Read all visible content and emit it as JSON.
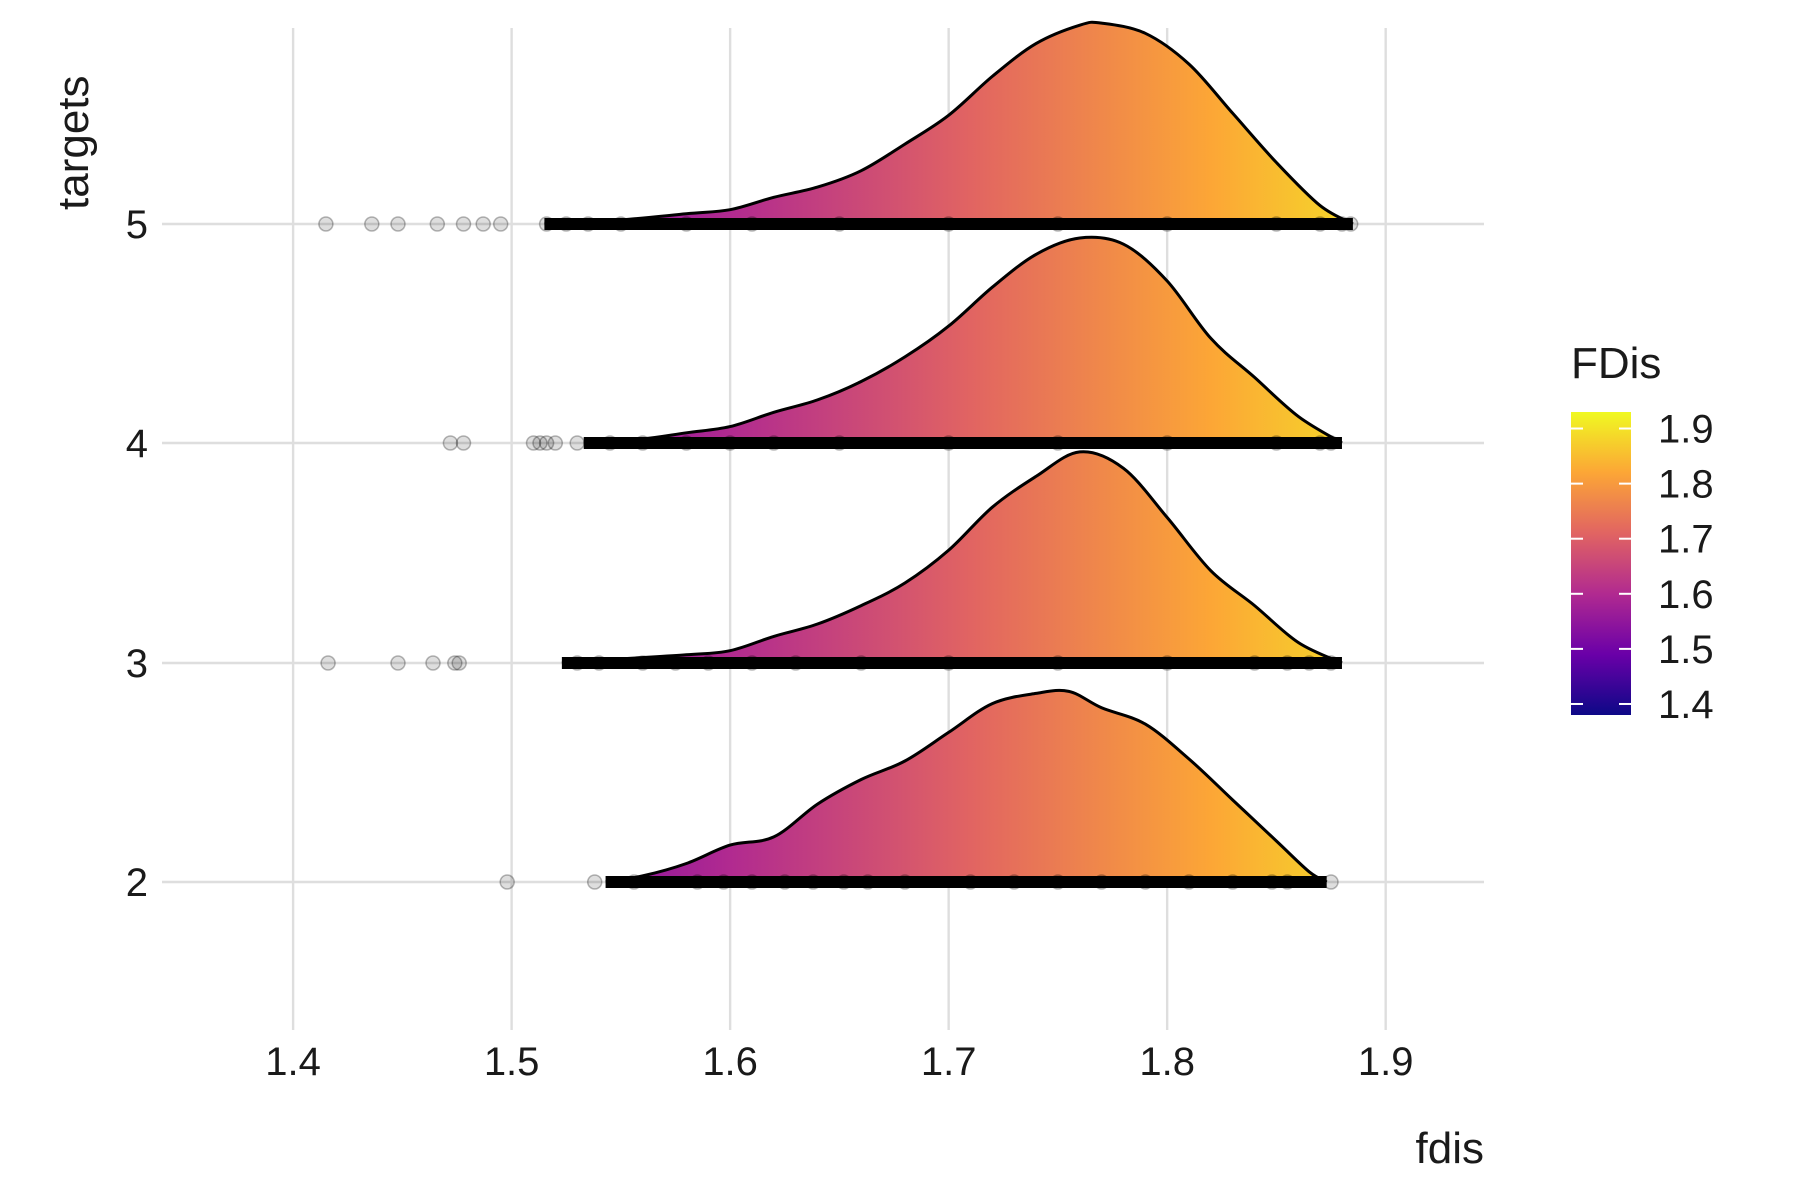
{
  "chart_data": {
    "type": "ridgeline",
    "xlabel": "fdis",
    "ylabel": "targets",
    "xlim": [
      1.34,
      1.945
    ],
    "x_ticks": [
      1.4,
      1.5,
      1.6,
      1.7,
      1.8,
      1.9
    ],
    "x_tick_labels": [
      "1.4",
      "1.5",
      "1.6",
      "1.7",
      "1.8",
      "1.9"
    ],
    "categories": [
      "2",
      "3",
      "4",
      "5"
    ],
    "grid": true,
    "legend": {
      "title": "FDis",
      "position": "right",
      "range": [
        1.38,
        1.93
      ],
      "ticks": [
        1.4,
        1.5,
        1.6,
        1.7,
        1.8,
        1.9
      ],
      "tick_labels": [
        "1.4",
        "1.5",
        "1.6",
        "1.7",
        "1.8",
        "1.9"
      ],
      "palette": "plasma",
      "stops": [
        "#0d0887",
        "#6a00a8",
        "#b12a90",
        "#e16462",
        "#fca636",
        "#f0f921"
      ]
    },
    "series": [
      {
        "target": "2",
        "density": [
          [
            1.543,
            0.0
          ],
          [
            1.56,
            0.03
          ],
          [
            1.58,
            0.09
          ],
          [
            1.6,
            0.18
          ],
          [
            1.62,
            0.22
          ],
          [
            1.64,
            0.38
          ],
          [
            1.66,
            0.5
          ],
          [
            1.68,
            0.59
          ],
          [
            1.7,
            0.73
          ],
          [
            1.72,
            0.87
          ],
          [
            1.74,
            0.92
          ],
          [
            1.755,
            0.93
          ],
          [
            1.77,
            0.85
          ],
          [
            1.79,
            0.77
          ],
          [
            1.81,
            0.6
          ],
          [
            1.83,
            0.4
          ],
          [
            1.85,
            0.2
          ],
          [
            1.865,
            0.05
          ],
          [
            1.873,
            0.0
          ]
        ],
        "points": [
          1.498,
          1.538,
          1.556,
          1.585,
          1.597,
          1.61,
          1.625,
          1.638,
          1.652,
          1.663,
          1.68,
          1.71,
          1.73,
          1.75,
          1.77,
          1.79,
          1.81,
          1.83,
          1.848,
          1.855,
          1.875
        ]
      },
      {
        "target": "3",
        "density": [
          [
            1.523,
            0.0
          ],
          [
            1.55,
            0.02
          ],
          [
            1.58,
            0.04
          ],
          [
            1.6,
            0.06
          ],
          [
            1.62,
            0.13
          ],
          [
            1.64,
            0.19
          ],
          [
            1.66,
            0.28
          ],
          [
            1.68,
            0.39
          ],
          [
            1.7,
            0.55
          ],
          [
            1.72,
            0.76
          ],
          [
            1.74,
            0.91
          ],
          [
            1.76,
            1.03
          ],
          [
            1.78,
            0.95
          ],
          [
            1.8,
            0.71
          ],
          [
            1.82,
            0.45
          ],
          [
            1.84,
            0.28
          ],
          [
            1.86,
            0.1
          ],
          [
            1.88,
            0.0
          ]
        ],
        "points": [
          1.416,
          1.448,
          1.464,
          1.474,
          1.476,
          1.53,
          1.54,
          1.56,
          1.575,
          1.59,
          1.61,
          1.63,
          1.66,
          1.7,
          1.75,
          1.8,
          1.84,
          1.855,
          1.865,
          1.875
        ]
      },
      {
        "target": "4",
        "density": [
          [
            1.533,
            0.0
          ],
          [
            1.56,
            0.02
          ],
          [
            1.58,
            0.05
          ],
          [
            1.6,
            0.08
          ],
          [
            1.62,
            0.15
          ],
          [
            1.64,
            0.21
          ],
          [
            1.66,
            0.3
          ],
          [
            1.68,
            0.42
          ],
          [
            1.7,
            0.57
          ],
          [
            1.72,
            0.76
          ],
          [
            1.74,
            0.92
          ],
          [
            1.76,
            1.0
          ],
          [
            1.78,
            0.97
          ],
          [
            1.8,
            0.79
          ],
          [
            1.82,
            0.51
          ],
          [
            1.84,
            0.32
          ],
          [
            1.86,
            0.13
          ],
          [
            1.88,
            0.0
          ]
        ],
        "points": [
          1.472,
          1.478,
          1.51,
          1.513,
          1.516,
          1.52,
          1.53,
          1.545,
          1.56,
          1.58,
          1.6,
          1.62,
          1.65,
          1.7,
          1.75,
          1.8,
          1.85,
          1.87,
          1.875
        ]
      },
      {
        "target": "5",
        "density": [
          [
            1.515,
            0.0
          ],
          [
            1.55,
            0.02
          ],
          [
            1.58,
            0.05
          ],
          [
            1.6,
            0.07
          ],
          [
            1.62,
            0.13
          ],
          [
            1.64,
            0.18
          ],
          [
            1.66,
            0.26
          ],
          [
            1.68,
            0.39
          ],
          [
            1.7,
            0.53
          ],
          [
            1.72,
            0.72
          ],
          [
            1.74,
            0.88
          ],
          [
            1.76,
            0.97
          ],
          [
            1.77,
            0.98
          ],
          [
            1.79,
            0.93
          ],
          [
            1.81,
            0.78
          ],
          [
            1.83,
            0.54
          ],
          [
            1.85,
            0.3
          ],
          [
            1.87,
            0.09
          ],
          [
            1.885,
            0.0
          ]
        ],
        "points": [
          1.415,
          1.436,
          1.448,
          1.466,
          1.478,
          1.487,
          1.495,
          1.516,
          1.525,
          1.535,
          1.55,
          1.58,
          1.61,
          1.65,
          1.7,
          1.75,
          1.8,
          1.85,
          1.87,
          1.88,
          1.884
        ]
      }
    ]
  }
}
